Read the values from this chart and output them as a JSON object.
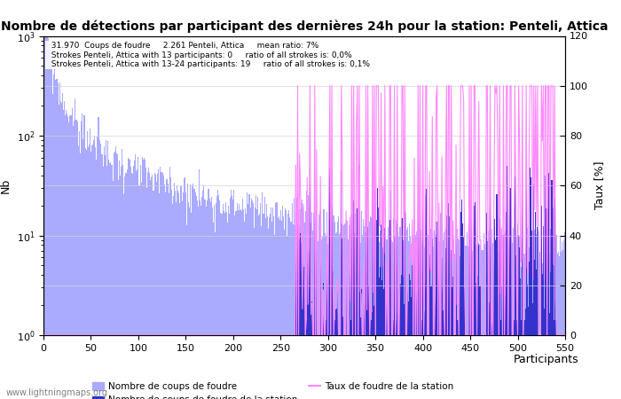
{
  "title": "Nombre de détections par participant des dernières 24h pour la station: Penteli, Attica",
  "annotation_lines": [
    "31.970  Coups de foudre     2.261 Penteli, Attica     mean ratio: 7%",
    "Strokes Penteli, Attica with 13 participants: 0     ratio of all strokes is: 0,0%",
    "Strokes Penteli, Attica with 13-24 participants: 19     ratio of all strokes is: 0,1%"
  ],
  "ylabel_left": "Nb",
  "ylabel_right": "Taux [%]",
  "xlabel": "Participants",
  "xlim": [
    0,
    550
  ],
  "ylim_log": [
    1,
    1000
  ],
  "ylim_right": [
    0,
    120
  ],
  "right_ticks": [
    0,
    20,
    40,
    60,
    80,
    100,
    120
  ],
  "n_participants": 550,
  "total_strokes": 31970,
  "station_strokes": 2261,
  "mean_ratio": 7,
  "watermark": "www.lightningmaps.org",
  "bar_color_all": "#aaaaff",
  "bar_color_station": "#3333cc",
  "line_color_ratio": "#ff88ff",
  "legend_labels": [
    "Nombre de coups de foudre",
    "Nombre de coups de foudre de la station",
    "Taux de foudre de la station"
  ],
  "figsize": [
    7.0,
    4.5
  ],
  "dpi": 100
}
